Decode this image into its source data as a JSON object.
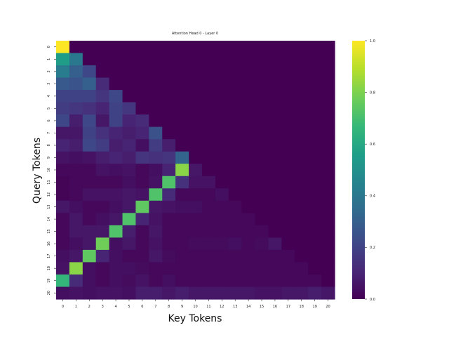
{
  "chart_data": {
    "type": "heatmap",
    "title": "Attention Head 0 - Layer 0",
    "xlabel": "Key Tokens",
    "ylabel": "Query Tokens",
    "x_ticks": [
      "0",
      "1",
      "2",
      "3",
      "4",
      "5",
      "6",
      "7",
      "8",
      "9",
      "10",
      "11",
      "12",
      "13",
      "14",
      "15",
      "16",
      "17",
      "18",
      "19",
      "20"
    ],
    "y_ticks": [
      "0",
      "1",
      "2",
      "3",
      "4",
      "5",
      "6",
      "7",
      "8",
      "9",
      "10",
      "11",
      "12",
      "13",
      "14",
      "15",
      "16",
      "17",
      "18",
      "19",
      "20"
    ],
    "colorbar": {
      "min": 0.0,
      "max": 1.0,
      "ticks": [
        "0.0",
        "0.2",
        "0.4",
        "0.6",
        "0.8",
        "1.0"
      ],
      "colormap": "viridis"
    },
    "colormap_stops": [
      "#440154",
      "#482878",
      "#3e4989",
      "#31688e",
      "#26828e",
      "#1f9e89",
      "#35b779",
      "#6ece58",
      "#b5de2b",
      "#fde725"
    ],
    "matrix": [
      [
        1.0,
        0,
        0,
        0,
        0,
        0,
        0,
        0,
        0,
        0,
        0,
        0,
        0,
        0,
        0,
        0,
        0,
        0,
        0,
        0,
        0
      ],
      [
        0.55,
        0.4,
        0,
        0,
        0,
        0,
        0,
        0,
        0,
        0,
        0,
        0,
        0,
        0,
        0,
        0,
        0,
        0,
        0,
        0,
        0
      ],
      [
        0.42,
        0.3,
        0.22,
        0,
        0,
        0,
        0,
        0,
        0,
        0,
        0,
        0,
        0,
        0,
        0,
        0,
        0,
        0,
        0,
        0,
        0
      ],
      [
        0.28,
        0.26,
        0.3,
        0.12,
        0,
        0,
        0,
        0,
        0,
        0,
        0,
        0,
        0,
        0,
        0,
        0,
        0,
        0,
        0,
        0,
        0
      ],
      [
        0.2,
        0.2,
        0.2,
        0.15,
        0.22,
        0,
        0,
        0,
        0,
        0,
        0,
        0,
        0,
        0,
        0,
        0,
        0,
        0,
        0,
        0,
        0
      ],
      [
        0.18,
        0.16,
        0.14,
        0.1,
        0.2,
        0.16,
        0,
        0,
        0,
        0,
        0,
        0,
        0,
        0,
        0,
        0,
        0,
        0,
        0,
        0,
        0
      ],
      [
        0.22,
        0.08,
        0.22,
        0.06,
        0.2,
        0.1,
        0.12,
        0,
        0,
        0,
        0,
        0,
        0,
        0,
        0,
        0,
        0,
        0,
        0,
        0,
        0
      ],
      [
        0.06,
        0.06,
        0.2,
        0.14,
        0.1,
        0.08,
        0.1,
        0.25,
        0,
        0,
        0,
        0,
        0,
        0,
        0,
        0,
        0,
        0,
        0,
        0,
        0
      ],
      [
        0.1,
        0.08,
        0.22,
        0.18,
        0.08,
        0.1,
        0.04,
        0.18,
        0.08,
        0,
        0,
        0,
        0,
        0,
        0,
        0,
        0,
        0,
        0,
        0,
        0
      ],
      [
        0.05,
        0.04,
        0.05,
        0.08,
        0.1,
        0.08,
        0.15,
        0.14,
        0.15,
        0.32,
        0,
        0,
        0,
        0,
        0,
        0,
        0,
        0,
        0,
        0,
        0
      ],
      [
        0.02,
        0.02,
        0.02,
        0.05,
        0.04,
        0.05,
        0.02,
        0.04,
        0.1,
        0.82,
        0.06,
        0,
        0,
        0,
        0,
        0,
        0,
        0,
        0,
        0,
        0
      ],
      [
        0.01,
        0.02,
        0.02,
        0.02,
        0.02,
        0.04,
        0.02,
        0.05,
        0.72,
        0.14,
        0.05,
        0.05,
        0,
        0,
        0,
        0,
        0,
        0,
        0,
        0,
        0
      ],
      [
        0.01,
        0.02,
        0.05,
        0.05,
        0.05,
        0.06,
        0.05,
        0.72,
        0.12,
        0.02,
        0.02,
        0.02,
        0.04,
        0,
        0,
        0,
        0,
        0,
        0,
        0,
        0
      ],
      [
        0.06,
        0.04,
        0.02,
        0.02,
        0.04,
        0.06,
        0.75,
        0.06,
        0.05,
        0.04,
        0.04,
        0.02,
        0.02,
        0.02,
        0,
        0,
        0,
        0,
        0,
        0,
        0
      ],
      [
        0.02,
        0.06,
        0.02,
        0.04,
        0.06,
        0.72,
        0.1,
        0.05,
        0.02,
        0.02,
        0.02,
        0.02,
        0.02,
        0.02,
        0.02,
        0,
        0,
        0,
        0,
        0,
        0
      ],
      [
        0.02,
        0.06,
        0.06,
        0.06,
        0.72,
        0.08,
        0.02,
        0.06,
        0.02,
        0.02,
        0.02,
        0.02,
        0.02,
        0.02,
        0.02,
        0.02,
        0,
        0,
        0,
        0,
        0
      ],
      [
        0.02,
        0.04,
        0.06,
        0.78,
        0.04,
        0.06,
        0.02,
        0.05,
        0.02,
        0.02,
        0.03,
        0.03,
        0.03,
        0.04,
        0.02,
        0.03,
        0.06,
        0,
        0,
        0,
        0
      ],
      [
        0.04,
        0.06,
        0.75,
        0.1,
        0.04,
        0.02,
        0.02,
        0.06,
        0.03,
        0.02,
        0.02,
        0.02,
        0.02,
        0.02,
        0.02,
        0.02,
        0.02,
        0.02,
        0,
        0,
        0
      ],
      [
        0.05,
        0.82,
        0.04,
        0.02,
        0.04,
        0.04,
        0.03,
        0.02,
        0.02,
        0.02,
        0.02,
        0.02,
        0.02,
        0.02,
        0.02,
        0.02,
        0.02,
        0.02,
        0.02,
        0,
        0
      ],
      [
        0.66,
        0.12,
        0.04,
        0.02,
        0.04,
        0.03,
        0.05,
        0.02,
        0.04,
        0.02,
        0.02,
        0.02,
        0.02,
        0.02,
        0.02,
        0.02,
        0.02,
        0.02,
        0.02,
        0.02,
        0
      ],
      [
        0.04,
        0.05,
        0.04,
        0.05,
        0.05,
        0.04,
        0.08,
        0.08,
        0.06,
        0.08,
        0.06,
        0.06,
        0.06,
        0.06,
        0.06,
        0.05,
        0.05,
        0.06,
        0.06,
        0.08,
        0.06
      ]
    ]
  }
}
